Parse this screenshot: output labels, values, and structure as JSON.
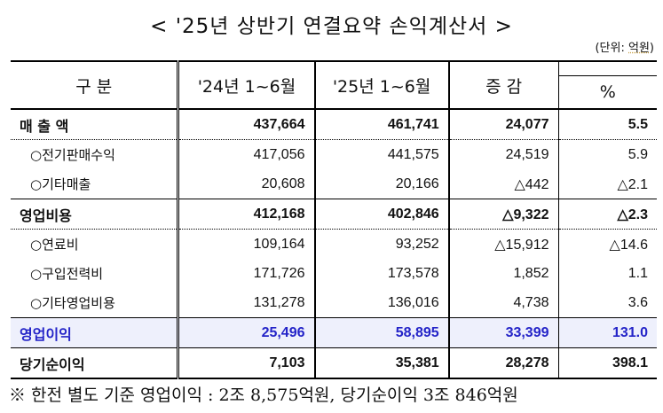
{
  "title": "< '25년 상반기 연결요약 손익계산서 >",
  "unit": {
    "prefix": "(단위: ",
    "value": "억원",
    "suffix": ")"
  },
  "header": {
    "category": "구  분",
    "prev": "'24년 1~6월",
    "curr": "'25년 1~6월",
    "change": "증  감",
    "pct": "%"
  },
  "rows": [
    {
      "label": "매 출 액",
      "prev": "437,664",
      "curr": "461,741",
      "change": "24,077",
      "pct": "5.5"
    },
    {
      "label": "○전기판매수익",
      "prev": "417,056",
      "curr": "441,575",
      "change": "24,519",
      "pct": "5.9"
    },
    {
      "label": "○기타매출",
      "prev": "20,608",
      "curr": "20,166",
      "change": "△442",
      "pct": "△2.1"
    },
    {
      "label": "영업비용",
      "prev": "412,168",
      "curr": "402,846",
      "change": "△9,322",
      "pct": "△2.3"
    },
    {
      "label": "○연료비",
      "prev": "109,164",
      "curr": "93,252",
      "change": "△15,912",
      "pct": "△14.6"
    },
    {
      "label": "○구입전력비",
      "prev": "171,726",
      "curr": "173,578",
      "change": "1,852",
      "pct": "1.1"
    },
    {
      "label": "○기타영업비용",
      "prev": "131,278",
      "curr": "136,016",
      "change": "4,738",
      "pct": "3.6"
    },
    {
      "label": "영업이익",
      "prev": "25,496",
      "curr": "58,895",
      "change": "33,399",
      "pct": "131.0"
    },
    {
      "label": "당기순이익",
      "prev": "7,103",
      "curr": "35,381",
      "change": "28,278",
      "pct": "398.1"
    }
  ],
  "highlight_color": "#2424c8",
  "footnote": "※  한전 별도 기준 영업이익 : 2조 8,575억원, 당기순이익 3조 846억원"
}
